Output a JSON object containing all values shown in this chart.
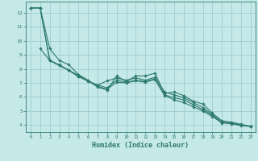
{
  "xlabel": "Humidex (Indice chaleur)",
  "bg_color": "#c5e8e8",
  "grid_color": "#9ecece",
  "line_color": "#2e7b6e",
  "xlim": [
    -0.5,
    23.5
  ],
  "ylim": [
    3.5,
    12.8
  ],
  "xticks": [
    0,
    1,
    2,
    3,
    4,
    5,
    6,
    7,
    8,
    9,
    10,
    11,
    12,
    13,
    14,
    15,
    16,
    17,
    18,
    19,
    20,
    21,
    22,
    23
  ],
  "yticks": [
    4,
    5,
    6,
    7,
    8,
    9,
    10,
    11,
    12
  ],
  "series": [
    {
      "x": [
        0,
        1,
        2,
        3,
        4,
        5,
        6,
        7,
        8,
        9,
        10,
        11,
        12,
        13,
        14,
        15,
        16,
        17,
        18,
        19,
        20,
        21,
        22,
        23
      ],
      "y": [
        12.35,
        12.35,
        9.45,
        8.6,
        8.3,
        7.6,
        7.2,
        6.7,
        6.5,
        7.5,
        7.1,
        7.5,
        7.5,
        7.7,
        6.25,
        6.35,
        6.1,
        5.7,
        5.5,
        4.85,
        4.3,
        4.2,
        4.05,
        3.9
      ]
    },
    {
      "x": [
        0,
        1,
        2,
        3,
        4,
        5,
        6,
        7,
        8,
        9,
        10,
        11,
        12,
        13,
        14,
        15,
        16,
        17,
        18,
        19,
        20,
        21,
        22,
        23
      ],
      "y": [
        12.35,
        12.35,
        8.6,
        8.3,
        7.9,
        7.55,
        7.1,
        6.85,
        7.15,
        7.35,
        7.2,
        7.35,
        7.2,
        7.4,
        6.35,
        6.15,
        5.95,
        5.6,
        5.25,
        4.75,
        4.2,
        4.15,
        4.0,
        3.9
      ]
    },
    {
      "x": [
        0,
        1,
        2,
        3,
        4,
        5,
        6,
        7,
        8,
        9,
        10,
        11,
        12,
        13,
        14,
        15,
        16,
        17,
        18,
        19,
        20,
        21,
        22,
        23
      ],
      "y": [
        12.35,
        12.35,
        8.6,
        8.25,
        7.9,
        7.45,
        7.15,
        6.85,
        6.65,
        7.2,
        7.05,
        7.2,
        7.1,
        7.3,
        6.15,
        5.95,
        5.8,
        5.45,
        5.1,
        4.7,
        4.2,
        4.1,
        4.0,
        3.9
      ]
    },
    {
      "x": [
        1,
        2,
        3,
        4,
        5,
        6,
        7,
        8,
        9,
        10,
        11,
        12,
        13,
        14,
        15,
        16,
        17,
        18,
        19,
        20,
        21,
        22,
        23
      ],
      "y": [
        9.45,
        8.6,
        8.25,
        7.9,
        7.45,
        7.15,
        6.75,
        6.55,
        7.05,
        7.0,
        7.15,
        7.05,
        7.25,
        6.1,
        5.8,
        5.6,
        5.3,
        5.0,
        4.6,
        4.15,
        4.1,
        3.95,
        3.9
      ]
    }
  ]
}
